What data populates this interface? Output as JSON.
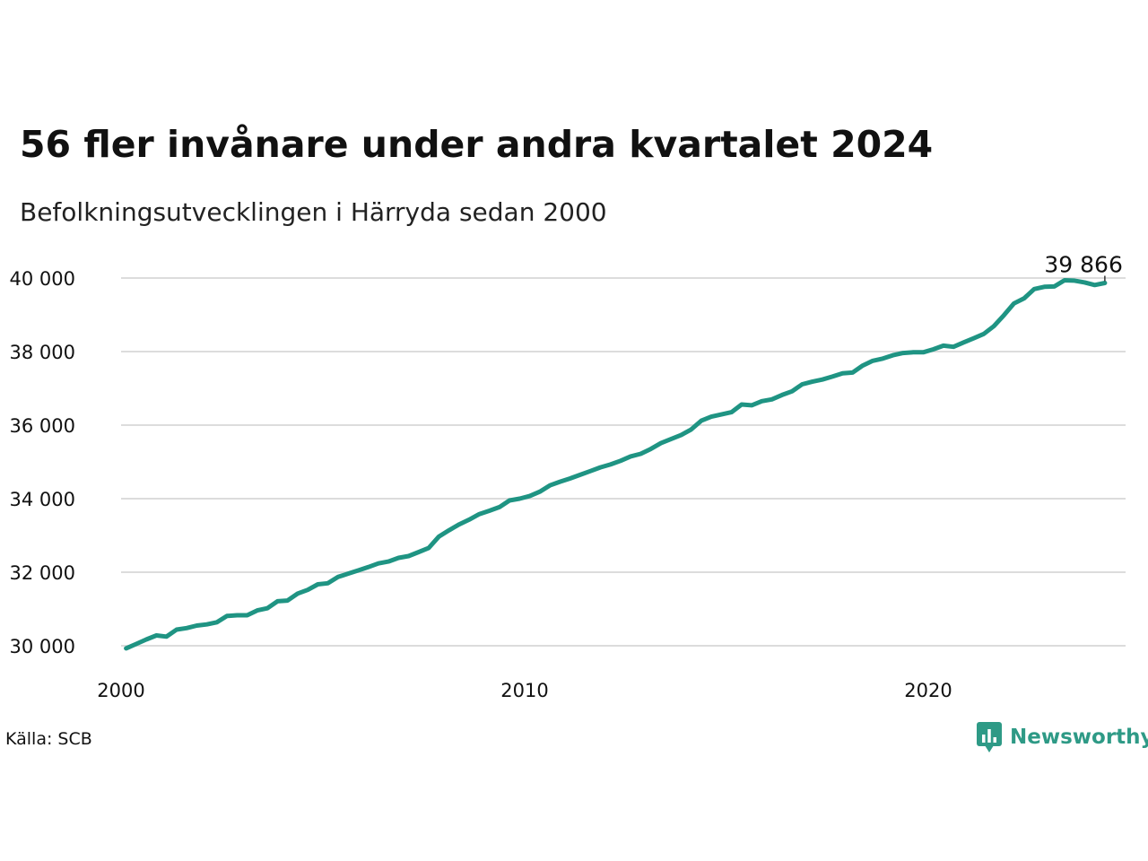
{
  "header": {
    "title": "56 fler invånare under andra kvartalet 2024",
    "subtitle": "Befolkningsutvecklingen i Härryda sedan 2000"
  },
  "footer": {
    "source": "Källa: SCB",
    "brand": "Newsworthy",
    "brand_icon": "chart-speech-bubble-icon"
  },
  "colors": {
    "line": "#1f9483",
    "grid": "#dcdcdc",
    "brand": "#2e9a86"
  },
  "chart_data": {
    "type": "line",
    "title": "56 fler invånare under andra kvartalet 2024",
    "subtitle": "Befolkningsutvecklingen i Härryda sedan 2000",
    "xlabel": "",
    "ylabel": "",
    "xlim": [
      2000,
      2025
    ],
    "ylim": [
      29800,
      40600
    ],
    "x_ticks": [
      2000,
      2010,
      2020
    ],
    "x_tick_labels": [
      "2000",
      "2010",
      "2020"
    ],
    "y_ticks": [
      30000,
      32000,
      34000,
      36000,
      38000,
      40000
    ],
    "y_tick_labels": [
      "30 000",
      "32 000",
      "34 000",
      "36 000",
      "38 000",
      "40 000"
    ],
    "grid": true,
    "end_label": "39 866",
    "series": [
      {
        "x": [
          2000.125,
          2000.375,
          2000.625,
          2000.875,
          2001.125,
          2001.375,
          2001.625,
          2001.875,
          2002.125,
          2002.375,
          2002.625,
          2002.875,
          2003.125,
          2003.375,
          2003.625,
          2003.875,
          2004.125,
          2004.375,
          2004.625,
          2004.875,
          2005.125,
          2005.375,
          2005.625,
          2005.875,
          2006.125,
          2006.375,
          2006.625,
          2006.875,
          2007.125,
          2007.375,
          2007.625,
          2007.875,
          2008.125,
          2008.375,
          2008.625,
          2008.875,
          2009.125,
          2009.375,
          2009.625,
          2009.875,
          2010.125,
          2010.375,
          2010.625,
          2010.875,
          2011.125,
          2011.375,
          2011.625,
          2011.875,
          2012.125,
          2012.375,
          2012.625,
          2012.875,
          2013.125,
          2013.375,
          2013.625,
          2013.875,
          2014.125,
          2014.375,
          2014.625,
          2014.875,
          2015.125,
          2015.375,
          2015.625,
          2015.875,
          2016.125,
          2016.375,
          2016.625,
          2016.875,
          2017.125,
          2017.375,
          2017.625,
          2017.875,
          2018.125,
          2018.375,
          2018.625,
          2018.875,
          2019.125,
          2019.375,
          2019.625,
          2019.875,
          2020.125,
          2020.375,
          2020.625,
          2020.875,
          2021.125,
          2021.375,
          2021.625,
          2021.875,
          2022.125,
          2022.375,
          2022.625,
          2022.875,
          2023.125,
          2023.375,
          2023.625,
          2023.875,
          2024.125,
          2024.375
        ],
        "values": [
          29930,
          30050,
          30170,
          30280,
          30250,
          30440,
          30480,
          30550,
          30580,
          30640,
          30810,
          30830,
          30830,
          30960,
          31020,
          31210,
          31230,
          31420,
          31520,
          31670,
          31700,
          31870,
          31960,
          32050,
          32140,
          32240,
          32290,
          32390,
          32440,
          32550,
          32660,
          32970,
          33140,
          33300,
          33430,
          33580,
          33670,
          33770,
          33950,
          34000,
          34070,
          34190,
          34360,
          34460,
          34550,
          34650,
          34750,
          34850,
          34930,
          35030,
          35150,
          35220,
          35350,
          35510,
          35620,
          35730,
          35880,
          36120,
          36230,
          36290,
          36350,
          36560,
          36540,
          36650,
          36700,
          36820,
          36920,
          37110,
          37180,
          37240,
          37320,
          37410,
          37430,
          37620,
          37750,
          37810,
          37900,
          37960,
          37980,
          37980,
          38060,
          38160,
          38130,
          38250,
          38360,
          38480,
          38690,
          38990,
          39310,
          39450,
          39700,
          39760,
          39770,
          39940,
          39930,
          39880,
          39810,
          39866
        ]
      }
    ]
  }
}
